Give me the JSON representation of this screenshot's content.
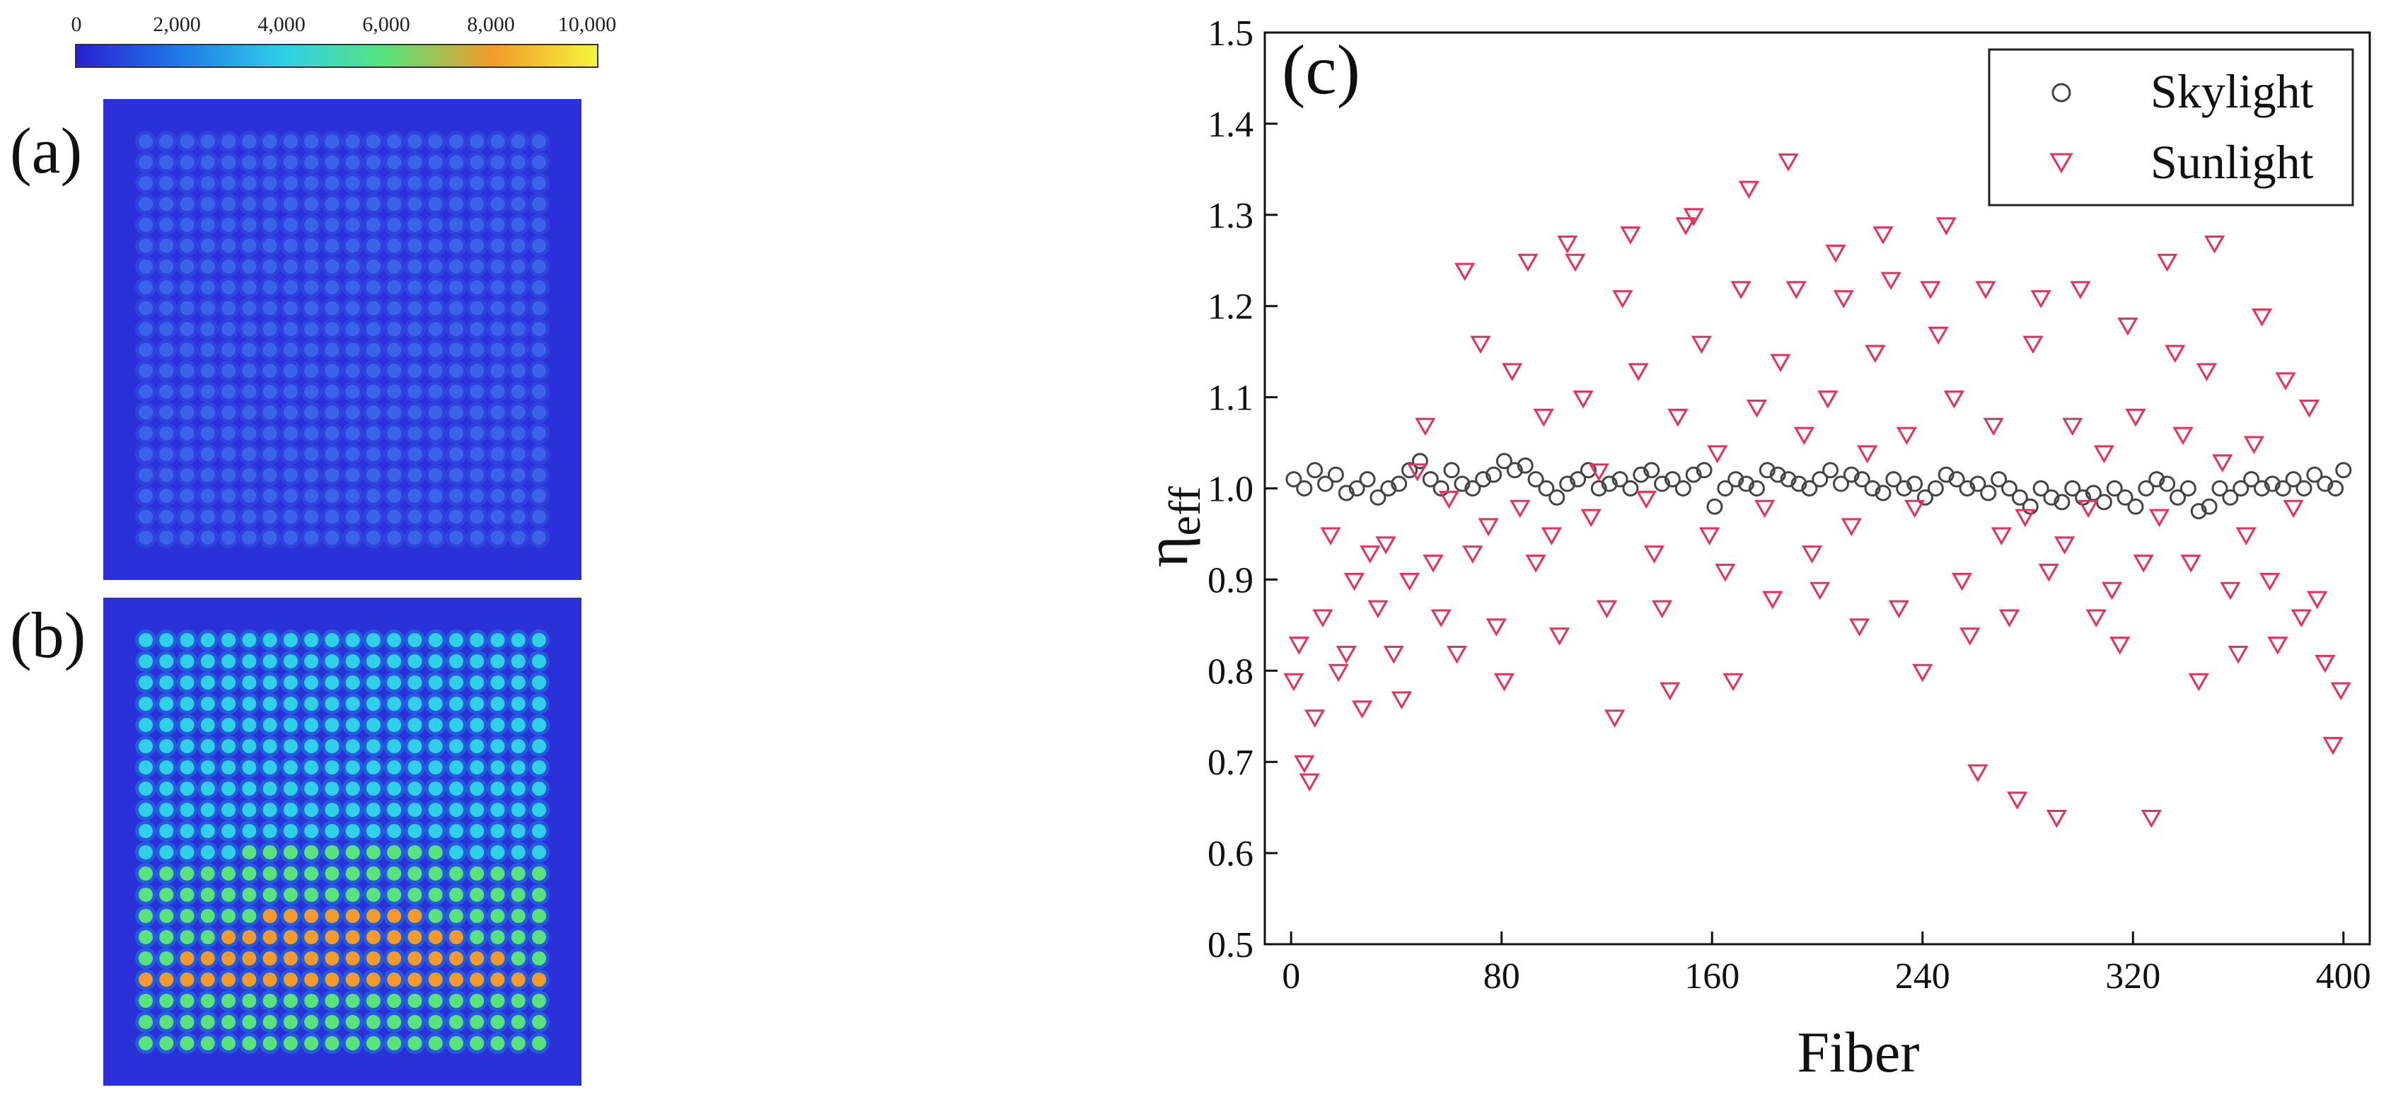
{
  "colorbar": {
    "ticks": [
      "0",
      "2,000",
      "4,000",
      "6,000",
      "8,000",
      "10,000"
    ],
    "range": [
      0,
      10000
    ],
    "colors": [
      "#2b1fd2",
      "#1f7be8",
      "#2fd0e8",
      "#5ae37a",
      "#f39a2a",
      "#f5f53c"
    ]
  },
  "panels": {
    "a_label": "(a)",
    "b_label": "(b)",
    "c_label": "(c)"
  },
  "intensity_maps": {
    "grid_size": [
      20,
      20
    ],
    "background_color": "#2a31d8",
    "a_spot_color": "#3a62ea",
    "b_spot_range_colors": [
      "#2fd0e8",
      "#5ae37a",
      "#f39a2a"
    ]
  },
  "chart_data": {
    "type": "scatter",
    "xlabel": "Fiber",
    "ylabel": "η",
    "ylabel_sub": "eff",
    "xlim": [
      -10,
      410
    ],
    "ylim": [
      0.5,
      1.5
    ],
    "xticks": [
      "0",
      "80",
      "160",
      "240",
      "320",
      "400"
    ],
    "yticks": [
      "0.5",
      "0.6",
      "0.7",
      "0.8",
      "0.9",
      "1.0",
      "1.1",
      "1.2",
      "1.3",
      "1.4",
      "1.5"
    ],
    "legend_position": "top-right",
    "series": [
      {
        "name": "Skylight",
        "marker": "circle",
        "color": "#444444",
        "x": [
          1,
          5,
          9,
          13,
          17,
          21,
          25,
          29,
          33,
          37,
          41,
          45,
          49,
          53,
          57,
          61,
          65,
          69,
          73,
          77,
          81,
          85,
          89,
          93,
          97,
          101,
          105,
          109,
          113,
          117,
          121,
          125,
          129,
          133,
          137,
          141,
          145,
          149,
          153,
          157,
          161,
          165,
          169,
          173,
          177,
          181,
          185,
          189,
          193,
          197,
          201,
          205,
          209,
          213,
          217,
          221,
          225,
          229,
          233,
          237,
          241,
          245,
          249,
          253,
          257,
          261,
          265,
          269,
          273,
          277,
          281,
          285,
          289,
          293,
          297,
          301,
          305,
          309,
          313,
          317,
          321,
          325,
          329,
          333,
          337,
          341,
          345,
          349,
          353,
          357,
          361,
          365,
          369,
          373,
          377,
          381,
          385,
          389,
          393,
          397,
          400
        ],
        "y": [
          1.01,
          1.0,
          1.02,
          1.005,
          1.015,
          0.995,
          1.0,
          1.01,
          0.99,
          1.0,
          1.005,
          1.02,
          1.03,
          1.01,
          1.0,
          1.02,
          1.005,
          1.0,
          1.01,
          1.015,
          1.03,
          1.02,
          1.025,
          1.01,
          1.0,
          0.99,
          1.005,
          1.01,
          1.02,
          1.0,
          1.005,
          1.01,
          1.0,
          1.015,
          1.02,
          1.005,
          1.01,
          1.0,
          1.015,
          1.02,
          0.98,
          1.0,
          1.01,
          1.005,
          1.0,
          1.02,
          1.015,
          1.01,
          1.005,
          1.0,
          1.01,
          1.02,
          1.005,
          1.015,
          1.01,
          1.0,
          0.995,
          1.01,
          1.0,
          1.005,
          0.99,
          1.0,
          1.015,
          1.01,
          1.0,
          1.005,
          0.995,
          1.01,
          1.0,
          0.99,
          0.98,
          1.0,
          0.99,
          0.985,
          1.0,
          0.99,
          0.995,
          0.985,
          1.0,
          0.99,
          0.98,
          1.0,
          1.01,
          1.005,
          0.99,
          1.0,
          0.975,
          0.98,
          1.0,
          0.99,
          1.0,
          1.01,
          1.0,
          1.005,
          1.0,
          1.01,
          1.0,
          1.015,
          1.005,
          1.0,
          1.02
        ]
      },
      {
        "name": "Sunlight",
        "marker": "triangle-down",
        "color": "#e8305a",
        "x": [
          1,
          3,
          5,
          7,
          9,
          12,
          15,
          18,
          21,
          24,
          27,
          30,
          33,
          36,
          39,
          42,
          45,
          48,
          51,
          54,
          57,
          60,
          63,
          66,
          69,
          72,
          75,
          78,
          81,
          84,
          87,
          90,
          93,
          96,
          99,
          102,
          105,
          108,
          111,
          114,
          117,
          120,
          123,
          126,
          129,
          132,
          135,
          138,
          141,
          144,
          147,
          150,
          153,
          156,
          159,
          162,
          165,
          168,
          171,
          174,
          177,
          180,
          183,
          186,
          189,
          192,
          195,
          198,
          201,
          204,
          207,
          210,
          213,
          216,
          219,
          222,
          225,
          228,
          231,
          234,
          237,
          240,
          243,
          246,
          249,
          252,
          255,
          258,
          261,
          264,
          267,
          270,
          273,
          276,
          279,
          282,
          285,
          288,
          291,
          294,
          297,
          300,
          303,
          306,
          309,
          312,
          315,
          318,
          321,
          324,
          327,
          330,
          333,
          336,
          339,
          342,
          345,
          348,
          351,
          354,
          357,
          360,
          363,
          366,
          369,
          372,
          375,
          378,
          381,
          384,
          387,
          390,
          393,
          396,
          399
        ],
        "y": [
          0.79,
          0.83,
          0.7,
          0.68,
          0.75,
          0.86,
          0.95,
          0.8,
          0.82,
          0.9,
          0.76,
          0.93,
          0.87,
          0.94,
          0.82,
          0.77,
          0.9,
          1.02,
          1.07,
          0.92,
          0.86,
          0.99,
          0.82,
          1.24,
          0.93,
          1.16,
          0.96,
          0.85,
          0.79,
          1.13,
          0.98,
          1.25,
          0.92,
          1.08,
          0.95,
          0.84,
          1.27,
          1.25,
          1.1,
          0.97,
          1.02,
          0.87,
          0.75,
          1.21,
          1.28,
          1.13,
          0.99,
          0.93,
          0.87,
          0.78,
          1.08,
          1.29,
          1.3,
          1.16,
          0.95,
          1.04,
          0.91,
          0.79,
          1.22,
          1.33,
          1.09,
          0.98,
          0.88,
          1.14,
          1.36,
          1.22,
          1.06,
          0.93,
          0.89,
          1.1,
          1.26,
          1.21,
          0.96,
          0.85,
          1.04,
          1.15,
          1.28,
          1.23,
          0.87,
          1.06,
          0.98,
          0.8,
          1.22,
          1.17,
          1.29,
          1.1,
          0.9,
          0.84,
          0.69,
          1.22,
          1.07,
          0.95,
          0.86,
          0.66,
          0.97,
          1.16,
          1.21,
          0.91,
          0.64,
          0.94,
          1.07,
          1.22,
          0.98,
          0.86,
          1.04,
          0.89,
          0.83,
          1.18,
          1.08,
          0.92,
          0.64,
          0.97,
          1.25,
          1.15,
          1.06,
          0.92,
          0.79,
          1.13,
          1.27,
          1.03,
          0.89,
          0.82,
          0.95,
          1.05,
          1.19,
          0.9,
          0.83,
          1.12,
          0.98,
          0.86,
          1.09,
          0.88,
          0.81,
          0.72,
          0.78
        ]
      }
    ]
  }
}
